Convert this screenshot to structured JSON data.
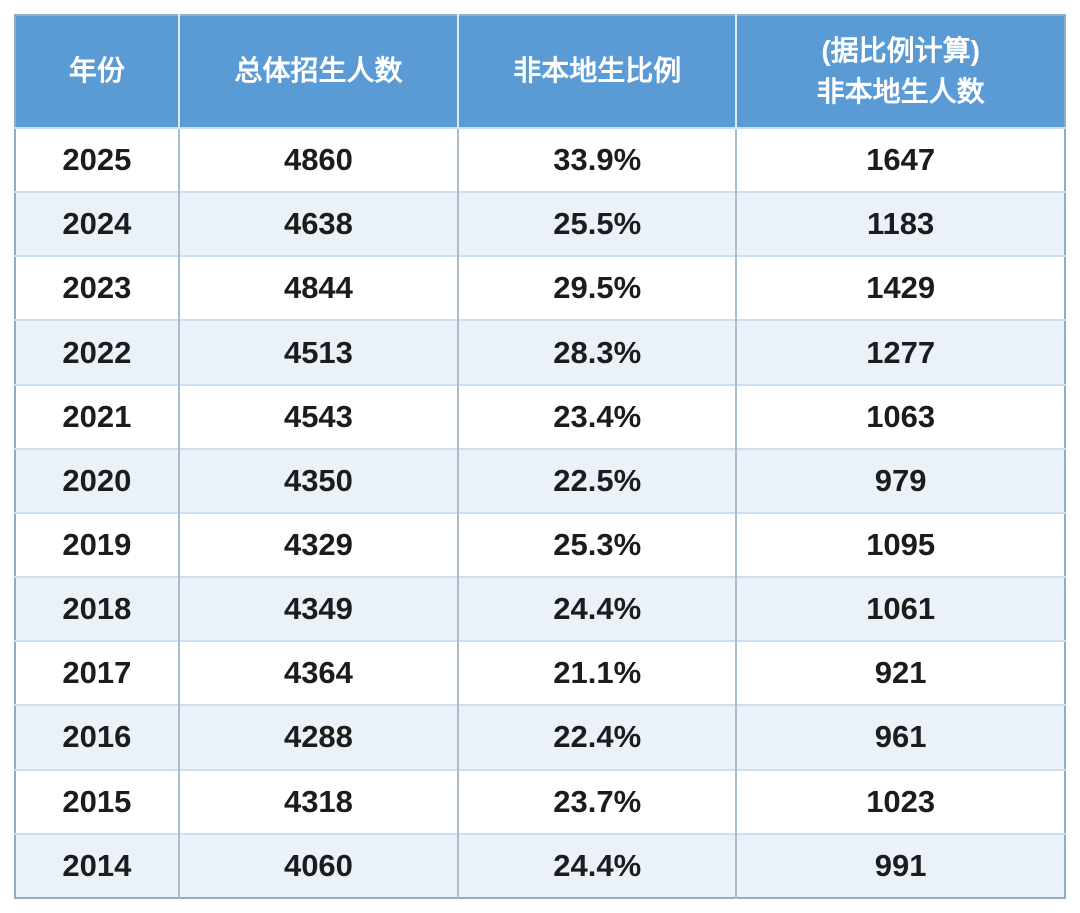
{
  "colors": {
    "header_bg": "#5b9bd5",
    "header_text": "#ffffff",
    "row_white": "#ffffff",
    "row_alt": "#eaf1f8",
    "outer_border": "#8fadc6",
    "vertical_grid": "#a9bccb",
    "horizontal_grid": "#cbdff1",
    "body_text": "#1c1c1c"
  },
  "table": {
    "headers": {
      "year": "年份",
      "total": "总体招生人数",
      "ratio": "非本地生比例",
      "calc_line1": "(据比例计算)",
      "calc_line2": "非本地生人数"
    },
    "rows": [
      [
        "2025",
        "4860",
        "33.9%",
        "1647"
      ],
      [
        "2024",
        "4638",
        "25.5%",
        "1183"
      ],
      [
        "2023",
        "4844",
        "29.5%",
        "1429"
      ],
      [
        "2022",
        "4513",
        "28.3%",
        "1277"
      ],
      [
        "2021",
        "4543",
        "23.4%",
        "1063"
      ],
      [
        "2020",
        "4350",
        "22.5%",
        "979"
      ],
      [
        "2019",
        "4329",
        "25.3%",
        "1095"
      ],
      [
        "2018",
        "4349",
        "24.4%",
        "1061"
      ],
      [
        "2017",
        "4364",
        "21.1%",
        "921"
      ],
      [
        "2016",
        "4288",
        "22.4%",
        "961"
      ],
      [
        "2015",
        "4318",
        "23.7%",
        "1023"
      ],
      [
        "2014",
        "4060",
        "24.4%",
        "991"
      ]
    ]
  },
  "chart_data": {
    "type": "table",
    "title": "",
    "columns": [
      "年份",
      "总体招生人数",
      "非本地生比例",
      "(据比例计算)非本地生人数"
    ],
    "rows": [
      [
        2025,
        4860,
        "33.9%",
        1647
      ],
      [
        2024,
        4638,
        "25.5%",
        1183
      ],
      [
        2023,
        4844,
        "29.5%",
        1429
      ],
      [
        2022,
        4513,
        "28.3%",
        1277
      ],
      [
        2021,
        4543,
        "23.4%",
        1063
      ],
      [
        2020,
        4350,
        "22.5%",
        979
      ],
      [
        2019,
        4329,
        "25.3%",
        1095
      ],
      [
        2018,
        4349,
        "24.4%",
        1061
      ],
      [
        2017,
        4364,
        "21.1%",
        921
      ],
      [
        2016,
        4288,
        "22.4%",
        961
      ],
      [
        2015,
        4318,
        "23.7%",
        1023
      ],
      [
        2014,
        4060,
        "24.4%",
        991
      ]
    ],
    "layout_hints": {
      "header_style": "blue banded header, white bold text",
      "row_striping": "alternating white and pale blue starting white at top data row",
      "alignment": "all cells centered"
    }
  }
}
